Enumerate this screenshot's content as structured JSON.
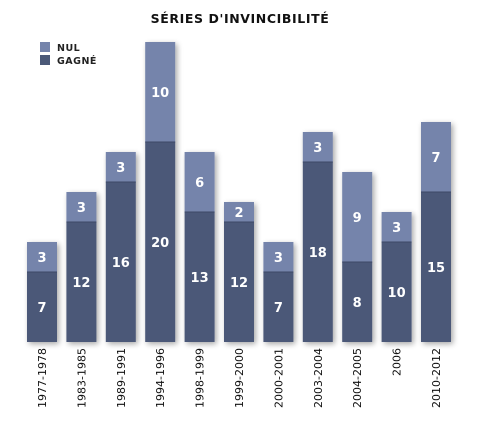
{
  "chart_data": {
    "type": "bar",
    "stacked": true,
    "title": "SÉRIES D'INVINCIBILITÉ",
    "xlabel": "",
    "ylabel": "",
    "ylim": [
      0,
      30
    ],
    "grid": false,
    "legend_position": "top-left",
    "categories": [
      "1977-1978",
      "1983-1985",
      "1989-1991",
      "1994-1996",
      "1998-1999",
      "1999-2000",
      "2000-2001",
      "2003-2004",
      "2004-2005",
      "2006",
      "2010-2012"
    ],
    "series": [
      {
        "name": "GAGNÉ",
        "color": "#4b5978",
        "values": [
          7,
          12,
          16,
          20,
          13,
          12,
          7,
          18,
          8,
          10,
          15
        ]
      },
      {
        "name": "NUL",
        "color": "#7584ab",
        "values": [
          3,
          3,
          3,
          10,
          6,
          2,
          3,
          3,
          9,
          3,
          7
        ]
      }
    ]
  }
}
